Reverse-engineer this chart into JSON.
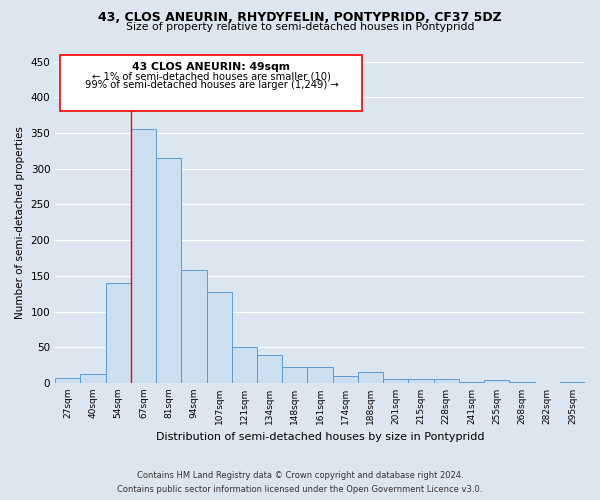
{
  "title": "43, CLOS ANEURIN, RHYDYFELIN, PONTYPRIDD, CF37 5DZ",
  "subtitle": "Size of property relative to semi-detached houses in Pontypridd",
  "xlabel": "Distribution of semi-detached houses by size in Pontypridd",
  "ylabel": "Number of semi-detached properties",
  "bar_labels": [
    "27sqm",
    "40sqm",
    "54sqm",
    "67sqm",
    "81sqm",
    "94sqm",
    "107sqm",
    "121sqm",
    "134sqm",
    "148sqm",
    "161sqm",
    "174sqm",
    "188sqm",
    "201sqm",
    "215sqm",
    "228sqm",
    "241sqm",
    "255sqm",
    "268sqm",
    "282sqm",
    "295sqm"
  ],
  "bar_values": [
    7,
    13,
    140,
    355,
    315,
    158,
    127,
    50,
    39,
    22,
    22,
    10,
    15,
    5,
    6,
    6,
    2,
    4,
    1,
    0,
    2
  ],
  "bar_color": "#ccdff0",
  "bar_edge_color": "#5b9bd5",
  "ylim": [
    0,
    450
  ],
  "yticks": [
    0,
    50,
    100,
    150,
    200,
    250,
    300,
    350,
    400,
    450
  ],
  "annotation_text_line1": "43 CLOS ANEURIN: 49sqm",
  "annotation_text_line2": "← 1% of semi-detached houses are smaller (10)",
  "annotation_text_line3": "99% of semi-detached houses are larger (1,249) →",
  "red_line_x": 2.5,
  "footer_line1": "Contains HM Land Registry data © Crown copyright and database right 2024.",
  "footer_line2": "Contains public sector information licensed under the Open Government Licence v3.0.",
  "background_color": "#dce6f1",
  "plot_background": "#dce6f1",
  "grid_color": "#ffffff"
}
